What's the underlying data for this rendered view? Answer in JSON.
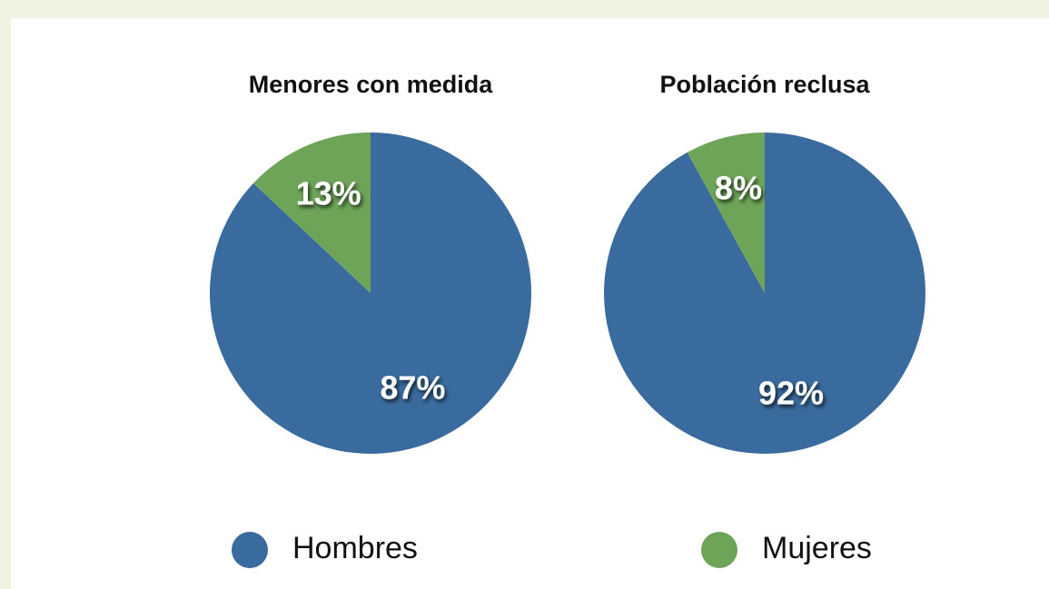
{
  "chart_data": [
    {
      "type": "pie",
      "title": "Menores con medida",
      "categories": [
        "Hombres",
        "Mujeres"
      ],
      "values": [
        87,
        13
      ],
      "value_labels": [
        "87%",
        "13%"
      ],
      "colors": [
        "#3a6b9e",
        "#6ea458"
      ]
    },
    {
      "type": "pie",
      "title": "Población reclusa",
      "categories": [
        "Hombres",
        "Mujeres"
      ],
      "values": [
        92,
        8
      ],
      "value_labels": [
        "92%",
        "8%"
      ],
      "colors": [
        "#3a6b9e",
        "#6ea458"
      ]
    }
  ]
}
